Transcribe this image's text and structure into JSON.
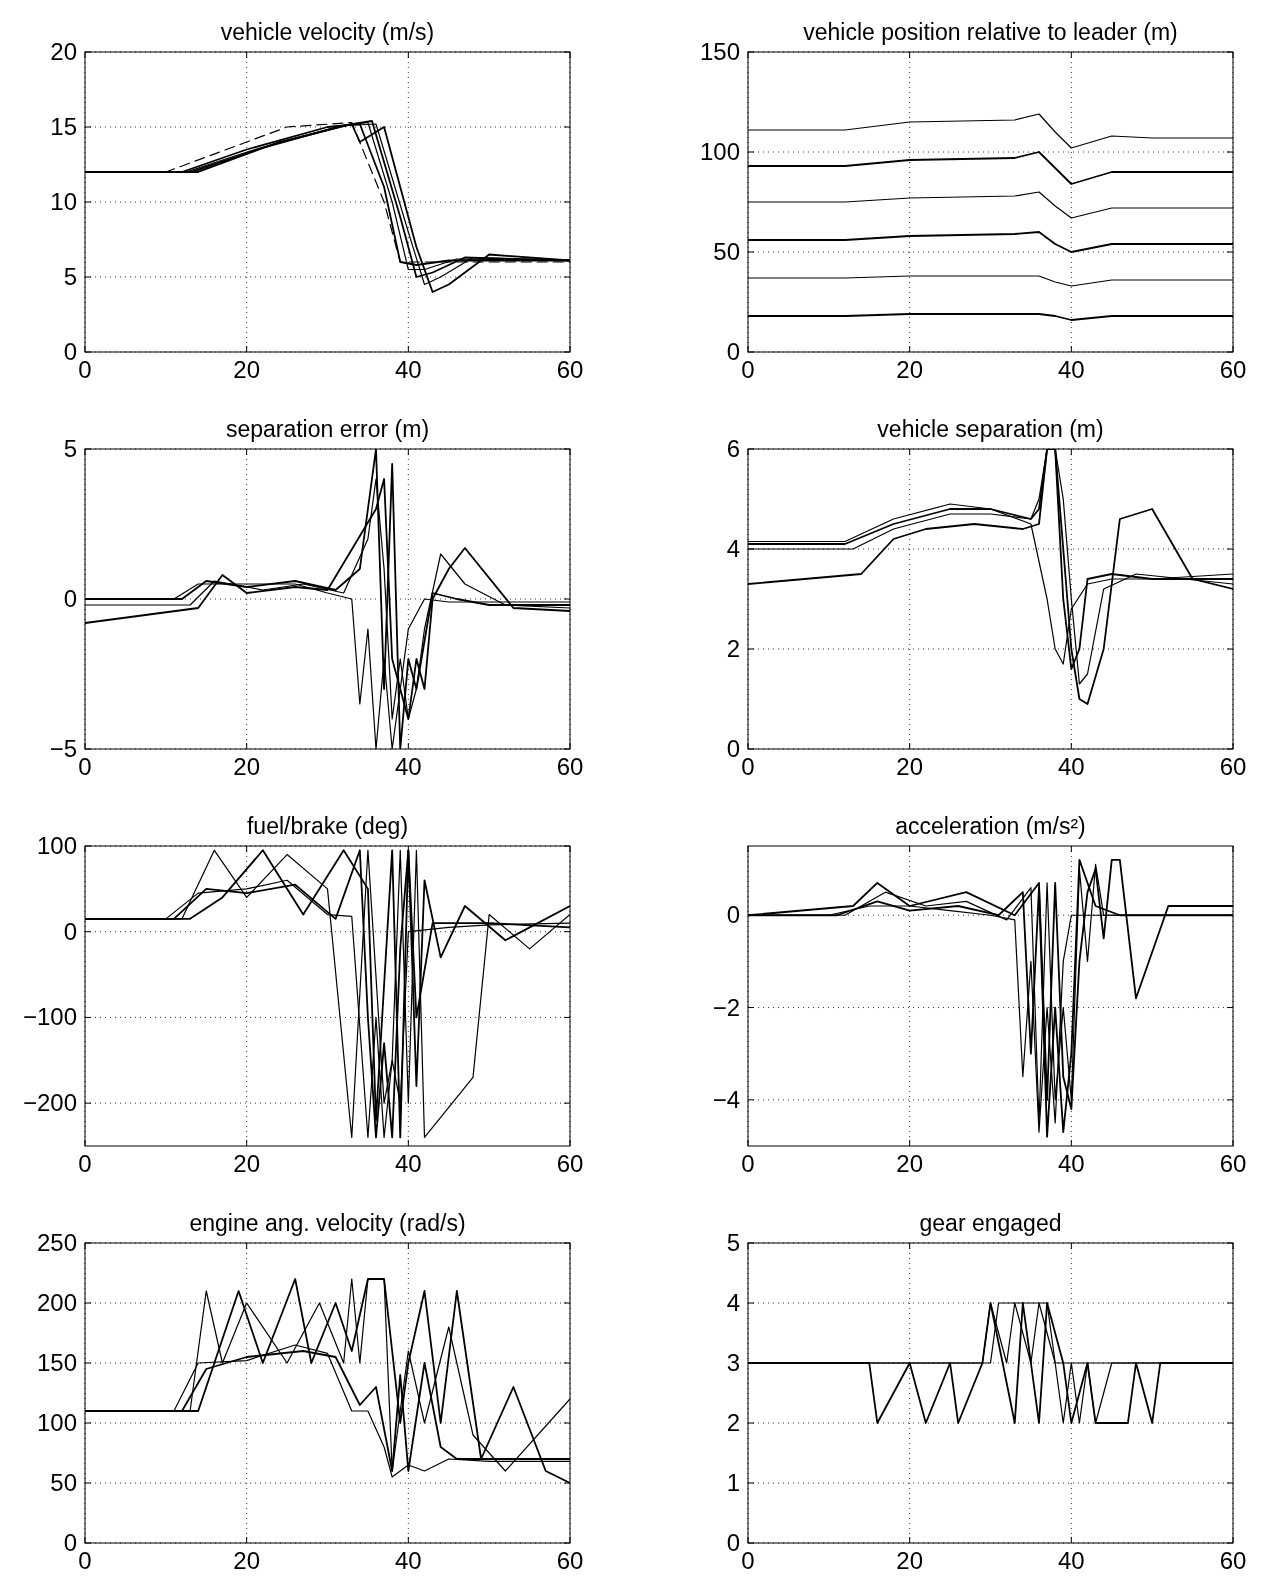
{
  "chart_data": [
    {
      "type": "line",
      "title": "vehicle velocity (m/s)",
      "xlim": [
        0,
        60
      ],
      "xticks": [
        0,
        20,
        40,
        60
      ],
      "ylim": [
        0,
        20
      ],
      "yticks": [
        0,
        5,
        10,
        15,
        20
      ],
      "grid": true,
      "series": [
        {
          "color": "#000000",
          "line_style": "dashed",
          "x": [
            0,
            10,
            25,
            33,
            37,
            39,
            60
          ],
          "values": [
            12,
            12,
            15,
            15.3,
            10,
            6,
            6
          ]
        },
        {
          "color": "#000000",
          "x": [
            0,
            12,
            20,
            30,
            34,
            37,
            39,
            41,
            45,
            60
          ],
          "values": [
            12,
            12,
            13.5,
            15,
            15.2,
            11,
            6,
            5.8,
            6.1,
            6.1
          ]
        },
        {
          "color": "#000000",
          "x": [
            0,
            12.5,
            21,
            31,
            35,
            38,
            40,
            42,
            46,
            60
          ],
          "values": [
            12,
            12,
            13.5,
            15,
            15.3,
            10,
            5.5,
            5.5,
            6.2,
            6.1
          ]
        },
        {
          "color": "#000000",
          "x": [
            0,
            13,
            22,
            32,
            35.5,
            39,
            41,
            43,
            47,
            60
          ],
          "values": [
            12,
            12,
            13.6,
            15.1,
            15.4,
            9,
            5,
            5.3,
            6.3,
            6.1
          ]
        },
        {
          "color": "#000000",
          "x": [
            0,
            13.5,
            23,
            32.5,
            36,
            40,
            42,
            44,
            48,
            60
          ],
          "values": [
            12,
            12,
            13.8,
            15.1,
            15.2,
            8,
            4.5,
            5,
            6.3,
            6.1
          ]
        },
        {
          "color": "#000000",
          "x": [
            0,
            14,
            24,
            33,
            34,
            37,
            41,
            43,
            45,
            50,
            60
          ],
          "values": [
            12,
            12,
            14,
            15.2,
            14,
            15,
            7,
            4,
            4.5,
            6.5,
            6.1
          ]
        }
      ]
    },
    {
      "type": "line",
      "title": "vehicle position relative to leader (m)",
      "xlim": [
        0,
        60
      ],
      "xticks": [
        0,
        20,
        40,
        60
      ],
      "ylim": [
        0,
        150
      ],
      "yticks": [
        0,
        50,
        100,
        150
      ],
      "grid": true,
      "series": [
        {
          "color": "#000000",
          "x": [
            0,
            12,
            20,
            33,
            36,
            38,
            40,
            45,
            50,
            60
          ],
          "values": [
            111,
            111,
            115,
            116,
            119,
            110,
            102,
            108,
            107,
            107
          ]
        },
        {
          "color": "#000000",
          "x": [
            0,
            12,
            20,
            33,
            36,
            38,
            40,
            45,
            50,
            60
          ],
          "values": [
            93,
            93,
            96,
            97,
            100,
            92,
            84,
            90,
            90,
            90
          ]
        },
        {
          "color": "#000000",
          "x": [
            0,
            12,
            20,
            33,
            36,
            38,
            40,
            45,
            50,
            60
          ],
          "values": [
            75,
            75,
            77,
            78,
            80,
            73,
            67,
            72,
            72,
            72
          ]
        },
        {
          "color": "#000000",
          "x": [
            0,
            12,
            20,
            33,
            36,
            38,
            40,
            45,
            50,
            60
          ],
          "values": [
            56,
            56,
            58,
            59,
            60,
            54,
            50,
            54,
            54,
            54
          ]
        },
        {
          "color": "#000000",
          "x": [
            0,
            12,
            20,
            33,
            36,
            38,
            40,
            45,
            50,
            60
          ],
          "values": [
            37,
            37,
            38,
            38,
            38,
            35,
            33,
            36,
            36,
            36
          ]
        },
        {
          "color": "#000000",
          "x": [
            0,
            12,
            20,
            33,
            36,
            38,
            40,
            45,
            50,
            60
          ],
          "values": [
            18,
            18,
            19,
            19,
            19,
            18,
            16,
            18,
            18,
            18
          ]
        }
      ]
    },
    {
      "type": "line",
      "title": "separation error (m)",
      "xlim": [
        0,
        60
      ],
      "xticks": [
        0,
        20,
        40,
        60
      ],
      "ylim": [
        -5,
        5
      ],
      "yticks": [
        -5,
        0,
        5
      ],
      "grid": true,
      "series": [
        {
          "color": "#000000",
          "x": [
            0,
            11,
            14,
            20,
            26,
            30,
            33,
            34,
            35,
            36,
            37,
            38,
            39,
            40,
            42,
            45,
            50,
            60
          ],
          "values": [
            0,
            0,
            0.5,
            0.5,
            0.5,
            0.2,
            0,
            -3.5,
            -1,
            -5,
            -2,
            -5,
            -3,
            -1,
            0,
            -0.1,
            -0.1,
            -0.1
          ]
        },
        {
          "color": "#000000",
          "x": [
            0,
            12,
            15,
            20,
            26,
            31,
            34,
            35,
            36,
            37,
            38,
            39,
            40,
            41,
            43,
            46,
            50,
            60
          ],
          "values": [
            0,
            0,
            0.6,
            0.4,
            0.6,
            0.3,
            1,
            3,
            5,
            -3,
            4.5,
            -5,
            -2,
            -3,
            0.2,
            0,
            -0.2,
            -0.2
          ]
        },
        {
          "color": "#000000",
          "x": [
            0,
            13,
            16,
            22,
            27,
            32,
            35,
            36,
            37,
            38,
            39,
            40,
            41,
            42,
            44,
            47,
            52,
            60
          ],
          "values": [
            -0.2,
            -0.2,
            0.6,
            0.3,
            0.5,
            0.2,
            2,
            4,
            1,
            -4,
            -2,
            -4,
            -3,
            -1,
            1.5,
            0.5,
            -0.2,
            -0.3
          ]
        },
        {
          "color": "#000000",
          "x": [
            0,
            14,
            17,
            20,
            26,
            30,
            36,
            37,
            38,
            39,
            40,
            41,
            42,
            43,
            45,
            47,
            53,
            60
          ],
          "values": [
            -0.8,
            -0.3,
            0.8,
            0.2,
            0.4,
            0.3,
            3,
            4,
            -2,
            -3,
            -4,
            -2,
            -3,
            0,
            1,
            1.7,
            -0.3,
            -0.4
          ]
        }
      ]
    },
    {
      "type": "line",
      "title": "vehicle separation (m)",
      "xlim": [
        0,
        60
      ],
      "xticks": [
        0,
        20,
        40,
        60
      ],
      "ylim": [
        0,
        6
      ],
      "yticks": [
        0,
        2,
        4,
        6
      ],
      "grid": true,
      "series": [
        {
          "color": "#000000",
          "x": [
            0,
            12,
            18,
            25,
            30,
            35,
            37,
            38,
            39,
            40,
            42,
            45,
            50,
            60
          ],
          "values": [
            4.15,
            4.15,
            4.6,
            4.9,
            4.8,
            4.5,
            3,
            2,
            1.7,
            2.8,
            3.3,
            3.4,
            3.4,
            3.5
          ]
        },
        {
          "color": "#000000",
          "x": [
            0,
            12,
            18,
            25,
            30,
            35,
            36,
            37,
            38,
            39,
            40,
            41,
            42,
            45,
            50,
            60
          ],
          "values": [
            4.1,
            4.1,
            4.5,
            4.8,
            4.8,
            4.6,
            4.8,
            6,
            6,
            3,
            1.6,
            2,
            3.4,
            3.5,
            3.4,
            3.4
          ]
        },
        {
          "color": "#000000",
          "x": [
            0,
            13,
            18,
            25,
            30,
            35,
            36,
            37,
            38,
            39,
            40,
            41,
            42,
            44,
            48,
            60
          ],
          "values": [
            4,
            4,
            4.4,
            4.7,
            4.7,
            4.6,
            5,
            6,
            6,
            5,
            3,
            1.3,
            1.5,
            3.2,
            3.5,
            3.3
          ]
        },
        {
          "color": "#000000",
          "x": [
            0,
            14,
            18,
            22,
            28,
            34,
            36,
            37,
            38,
            39,
            40,
            41,
            42,
            44,
            46,
            50,
            55,
            60
          ],
          "values": [
            3.3,
            3.5,
            4.2,
            4.4,
            4.5,
            4.4,
            4.5,
            6,
            6,
            4,
            2,
            1,
            0.9,
            2,
            4.6,
            4.8,
            3.4,
            3.2
          ]
        }
      ]
    },
    {
      "type": "line",
      "title": "fuel/brake (deg)",
      "xlim": [
        0,
        60
      ],
      "xticks": [
        0,
        20,
        40,
        60
      ],
      "ylim": [
        -250,
        100
      ],
      "yticks": [
        -200,
        -100,
        0,
        100
      ],
      "grid": true,
      "series": [
        {
          "color": "#000000",
          "x": [
            0,
            10,
            14,
            20,
            25,
            30,
            33,
            35,
            36,
            37,
            38,
            39,
            40,
            45,
            50,
            60
          ],
          "values": [
            15,
            15,
            45,
            50,
            60,
            20,
            18,
            -240,
            -100,
            -240,
            -150,
            -200,
            0,
            5,
            8,
            10
          ]
        },
        {
          "color": "#000000",
          "x": [
            0,
            11,
            15,
            20,
            26,
            31,
            34,
            35,
            36,
            37,
            38,
            39,
            40,
            41,
            43,
            50,
            60
          ],
          "values": [
            15,
            15,
            50,
            45,
            55,
            15,
            95,
            -100,
            -240,
            -130,
            -240,
            -20,
            95,
            -100,
            10,
            10,
            5
          ]
        },
        {
          "color": "#000000",
          "x": [
            0,
            12,
            16,
            20,
            25,
            30,
            33,
            35,
            37,
            38,
            39,
            40,
            41,
            42,
            48,
            50,
            55,
            60
          ],
          "values": [
            15,
            15,
            95,
            40,
            90,
            50,
            -240,
            95,
            -200,
            -150,
            95,
            -200,
            95,
            -240,
            -170,
            20,
            -20,
            20
          ]
        },
        {
          "color": "#000000",
          "x": [
            0,
            13,
            17,
            22,
            27,
            32,
            35,
            36,
            38,
            39,
            40,
            41,
            42,
            44,
            47,
            52,
            60
          ],
          "values": [
            15,
            15,
            40,
            95,
            20,
            95,
            50,
            -220,
            95,
            -240,
            95,
            -180,
            60,
            -30,
            30,
            -10,
            30
          ]
        }
      ]
    },
    {
      "type": "line",
      "title": "acceleration (m/s²)",
      "xlim": [
        0,
        60
      ],
      "xticks": [
        0,
        20,
        40,
        60
      ],
      "ylim": [
        -5,
        1.5
      ],
      "yticks": [
        -4,
        -2,
        0
      ],
      "grid": true,
      "series": [
        {
          "color": "#000000",
          "x": [
            0,
            10,
            15,
            20,
            25,
            30,
            33,
            34,
            35,
            36,
            37,
            38,
            39,
            40,
            42,
            45,
            50,
            60
          ],
          "values": [
            0,
            0,
            0.2,
            0.2,
            0.1,
            0,
            -0.1,
            -3.5,
            -1,
            -4.7,
            -2,
            -4.5,
            -1,
            0,
            0,
            0,
            0,
            0
          ]
        },
        {
          "color": "#000000",
          "x": [
            0,
            11,
            16,
            20,
            26,
            31,
            34,
            35,
            36,
            37,
            38,
            39,
            40,
            41,
            43,
            46,
            50,
            60
          ],
          "values": [
            0,
            0,
            0.3,
            0.1,
            0.2,
            0,
            0.5,
            -3,
            0.6,
            -4.8,
            -2,
            -4.7,
            -3,
            1.2,
            0.2,
            0,
            0,
            0
          ]
        },
        {
          "color": "#000000",
          "x": [
            0,
            12,
            17,
            22,
            27,
            32,
            35,
            36,
            37,
            38,
            39,
            40,
            41,
            42,
            43,
            44,
            50,
            60
          ],
          "values": [
            0,
            0,
            0.5,
            0.2,
            0.3,
            -0.1,
            0.6,
            -4.5,
            0.7,
            -4,
            -2,
            -4,
            1,
            -1,
            1.1,
            0,
            0,
            0
          ]
        },
        {
          "color": "#000000",
          "x": [
            0,
            13,
            16,
            20,
            27,
            33,
            36,
            37,
            38,
            39,
            40,
            41,
            42,
            43,
            44,
            45,
            46,
            48,
            52,
            60
          ],
          "values": [
            0,
            0.2,
            0.7,
            0.2,
            0.5,
            0,
            0.7,
            -4,
            0.7,
            -3.5,
            -4.2,
            -1,
            0.5,
            1,
            -0.5,
            1.2,
            1.2,
            -1.8,
            0.2,
            0.2
          ]
        }
      ]
    },
    {
      "type": "line",
      "title": "engine ang. velocity (rad/s)",
      "xlim": [
        0,
        60
      ],
      "xticks": [
        0,
        20,
        40,
        60
      ],
      "ylim": [
        0,
        250
      ],
      "yticks": [
        0,
        50,
        100,
        150,
        200,
        250
      ],
      "grid": true,
      "series": [
        {
          "color": "#000000",
          "x": [
            0,
            11,
            14,
            20,
            26,
            30,
            33,
            35,
            37,
            38,
            40,
            42,
            45,
            50,
            60
          ],
          "values": [
            110,
            110,
            150,
            152,
            165,
            158,
            110,
            110,
            80,
            55,
            65,
            60,
            70,
            68,
            68
          ]
        },
        {
          "color": "#000000",
          "x": [
            0,
            12,
            15,
            20,
            27,
            31,
            34,
            36,
            38,
            39,
            40,
            42,
            44,
            46,
            50,
            60
          ],
          "values": [
            110,
            110,
            145,
            155,
            160,
            155,
            115,
            130,
            60,
            140,
            60,
            150,
            80,
            70,
            70,
            70
          ]
        },
        {
          "color": "#000000",
          "x": [
            0,
            13,
            15,
            17,
            20,
            25,
            29,
            32,
            33,
            34,
            35,
            37,
            38,
            40,
            42,
            45,
            48,
            52,
            60
          ],
          "values": [
            110,
            110,
            210,
            150,
            200,
            150,
            200,
            150,
            220,
            150,
            220,
            220,
            60,
            160,
            100,
            180,
            90,
            60,
            120
          ]
        },
        {
          "color": "#000000",
          "x": [
            0,
            14,
            16,
            19,
            22,
            26,
            28,
            31,
            33,
            35,
            37,
            39,
            40,
            42,
            44,
            46,
            49,
            53,
            57,
            60
          ],
          "values": [
            110,
            110,
            150,
            210,
            150,
            220,
            150,
            200,
            160,
            220,
            220,
            100,
            150,
            210,
            100,
            210,
            70,
            130,
            60,
            50
          ]
        }
      ]
    },
    {
      "type": "line",
      "title": "gear engaged",
      "xlim": [
        0,
        60
      ],
      "xticks": [
        0,
        20,
        40,
        60
      ],
      "ylim": [
        0,
        5
      ],
      "yticks": [
        0,
        1,
        2,
        3,
        4,
        5
      ],
      "grid": true,
      "series": [
        {
          "color": "#000000",
          "x": [
            0,
            30,
            31,
            37,
            38,
            60
          ],
          "values": [
            3,
            3,
            4,
            4,
            3,
            3
          ]
        },
        {
          "color": "#000000",
          "x": [
            0,
            15,
            16,
            20,
            22,
            25,
            26,
            29,
            30,
            33,
            34,
            36,
            37,
            39,
            40,
            42,
            43,
            47,
            48,
            50,
            51,
            60
          ],
          "values": [
            3,
            3,
            2,
            3,
            2,
            3,
            2,
            3,
            4,
            2,
            4,
            2,
            4,
            3,
            2,
            3,
            2,
            2,
            3,
            2,
            3,
            3
          ]
        },
        {
          "color": "#000000",
          "x": [
            0,
            29,
            30,
            32,
            33,
            35,
            36,
            38,
            39,
            40,
            41,
            42,
            43,
            45,
            50,
            60
          ],
          "values": [
            3,
            3,
            4,
            3,
            4,
            3,
            4,
            3,
            2,
            3,
            2,
            3,
            2,
            3,
            3,
            3
          ]
        }
      ]
    }
  ]
}
